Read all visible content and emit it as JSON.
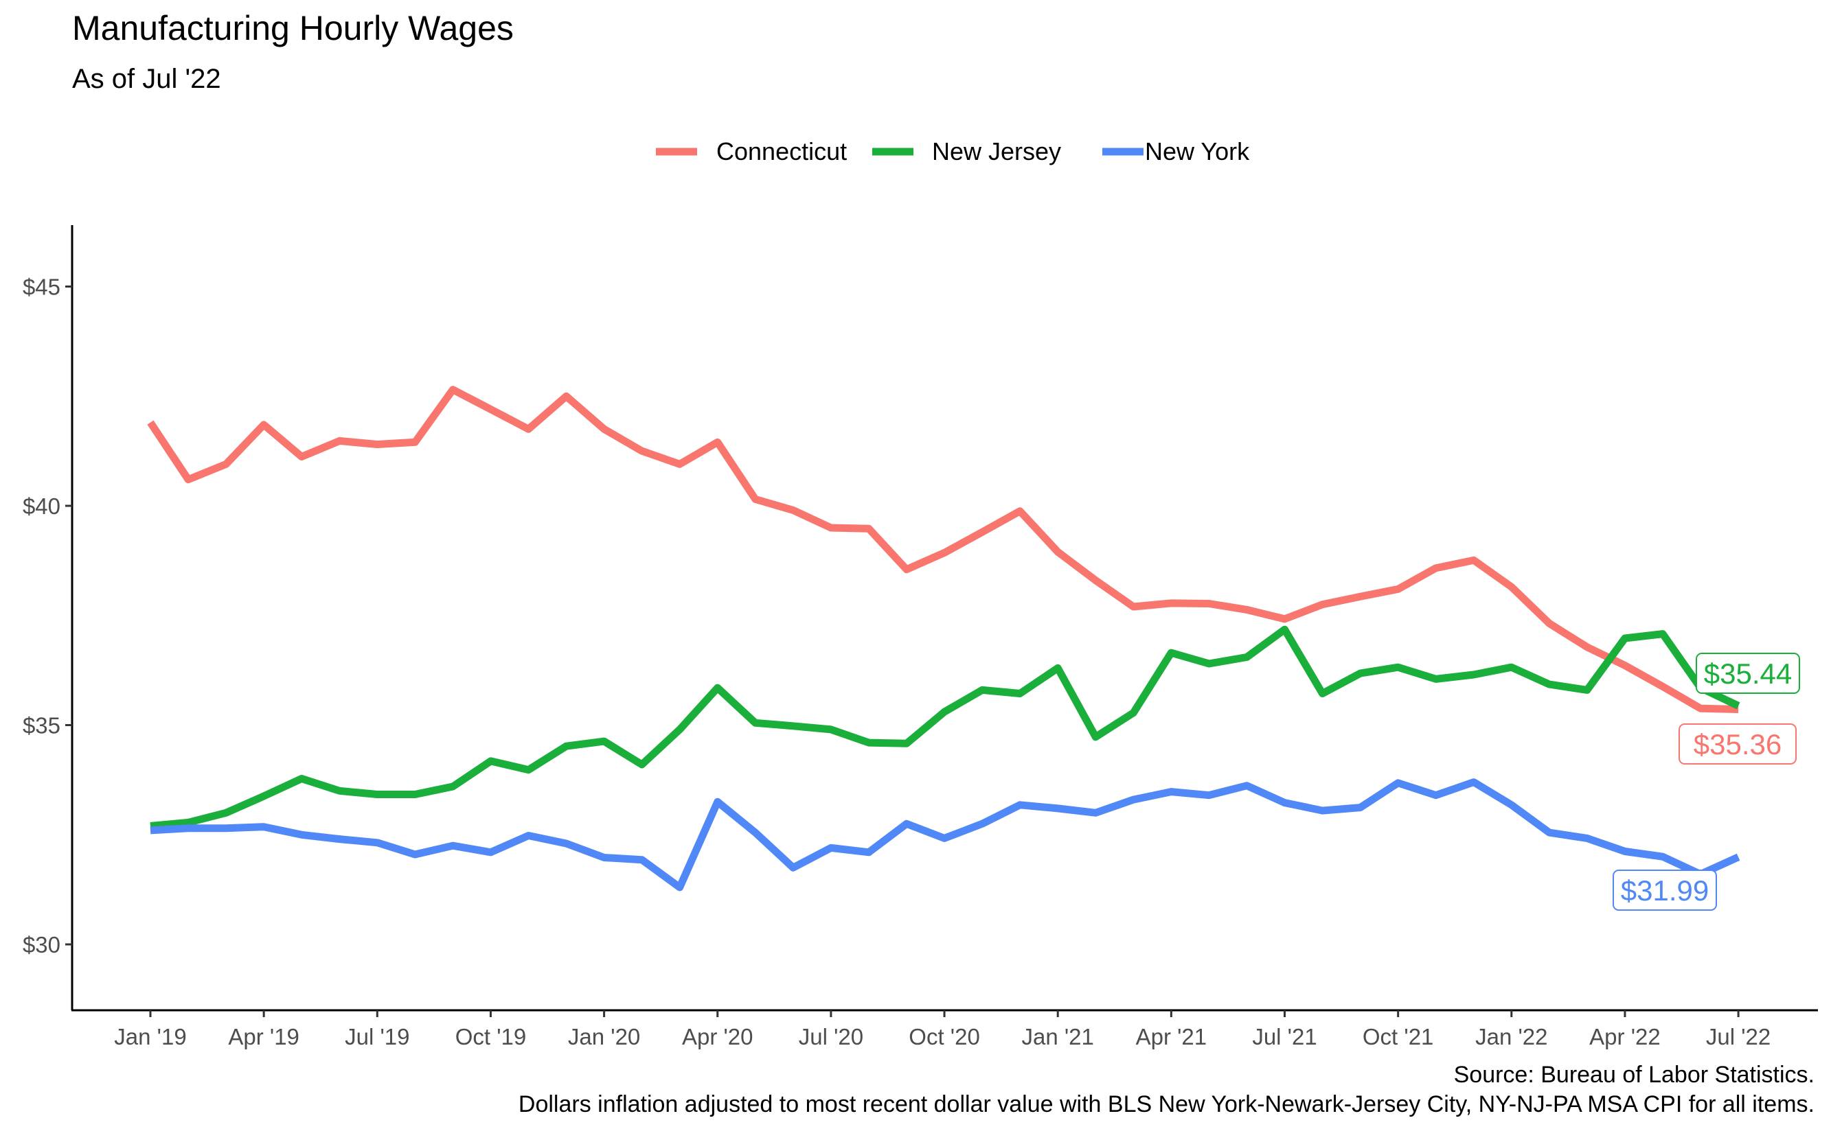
{
  "chart_data": {
    "type": "line",
    "title": "Manufacturing Hourly Wages",
    "subtitle": "As of Jul '22",
    "caption_lines": [
      "Source: Bureau of Labor Statistics.",
      "Dollars inflation adjusted to most recent dollar value with BLS New York-Newark-Jersey City, NY-NJ-PA MSA CPI for all items."
    ],
    "legend_position": "top",
    "grid": false,
    "x_ticks": [
      "Jan '19",
      "Apr '19",
      "Jul '19",
      "Oct '19",
      "Jan '20",
      "Apr '20",
      "Jul '20",
      "Oct '20",
      "Jan '21",
      "Apr '21",
      "Jul '21",
      "Oct '21",
      "Jan '22",
      "Apr '22",
      "Jul '22"
    ],
    "x": [
      "2019-01",
      "2019-02",
      "2019-03",
      "2019-04",
      "2019-05",
      "2019-06",
      "2019-07",
      "2019-08",
      "2019-09",
      "2019-10",
      "2019-11",
      "2019-12",
      "2020-01",
      "2020-02",
      "2020-03",
      "2020-04",
      "2020-05",
      "2020-06",
      "2020-07",
      "2020-08",
      "2020-09",
      "2020-10",
      "2020-11",
      "2020-12",
      "2021-01",
      "2021-02",
      "2021-03",
      "2021-04",
      "2021-05",
      "2021-06",
      "2021-07",
      "2021-08",
      "2021-09",
      "2021-10",
      "2021-11",
      "2021-12",
      "2022-01",
      "2022-02",
      "2022-03",
      "2022-04",
      "2022-05",
      "2022-06",
      "2022-07"
    ],
    "y_ticks": [
      "$30",
      "$35",
      "$40",
      "$45"
    ],
    "y_tick_values": [
      30,
      35,
      40,
      45
    ],
    "ylim": [
      28.6,
      46.5
    ],
    "series": [
      {
        "name": "Connecticut",
        "color": "#F8766D",
        "end_label": "$35.36",
        "values": [
          41.9,
          40.6,
          40.95,
          41.85,
          41.12,
          41.48,
          41.4,
          41.45,
          42.65,
          42.2,
          41.75,
          42.5,
          41.75,
          41.25,
          40.95,
          41.45,
          40.15,
          39.9,
          39.5,
          39.48,
          38.55,
          38.93,
          39.4,
          39.88,
          38.95,
          38.3,
          37.7,
          37.78,
          37.77,
          37.63,
          37.42,
          37.75,
          37.93,
          38.1,
          38.58,
          38.76,
          38.15,
          37.32,
          36.78,
          36.36,
          35.88,
          35.38,
          35.36
        ]
      },
      {
        "name": "New Jersey",
        "color": "#1AAE3A",
        "end_label": "$35.44",
        "values": [
          32.7,
          32.78,
          33.0,
          33.38,
          33.78,
          33.5,
          33.42,
          33.42,
          33.6,
          34.18,
          33.98,
          34.52,
          34.63,
          34.1,
          34.9,
          35.85,
          35.05,
          34.98,
          34.9,
          34.6,
          34.58,
          35.3,
          35.8,
          35.72,
          36.3,
          34.73,
          35.28,
          36.65,
          36.4,
          36.55,
          37.18,
          35.72,
          36.18,
          36.32,
          36.05,
          36.15,
          36.32,
          35.93,
          35.8,
          36.98,
          37.08,
          35.85,
          35.44
        ]
      },
      {
        "name": "New York",
        "color": "#5088F7",
        "end_label": "$31.99",
        "values": [
          32.6,
          32.65,
          32.65,
          32.68,
          32.5,
          32.4,
          32.32,
          32.05,
          32.25,
          32.1,
          32.48,
          32.3,
          31.98,
          31.93,
          31.3,
          33.25,
          32.55,
          31.75,
          32.2,
          32.1,
          32.75,
          32.42,
          32.75,
          33.18,
          33.1,
          33.0,
          33.3,
          33.48,
          33.4,
          33.62,
          33.23,
          33.05,
          33.12,
          33.68,
          33.4,
          33.7,
          33.18,
          32.55,
          32.42,
          32.12,
          32.0,
          31.6,
          31.99
        ]
      }
    ]
  }
}
